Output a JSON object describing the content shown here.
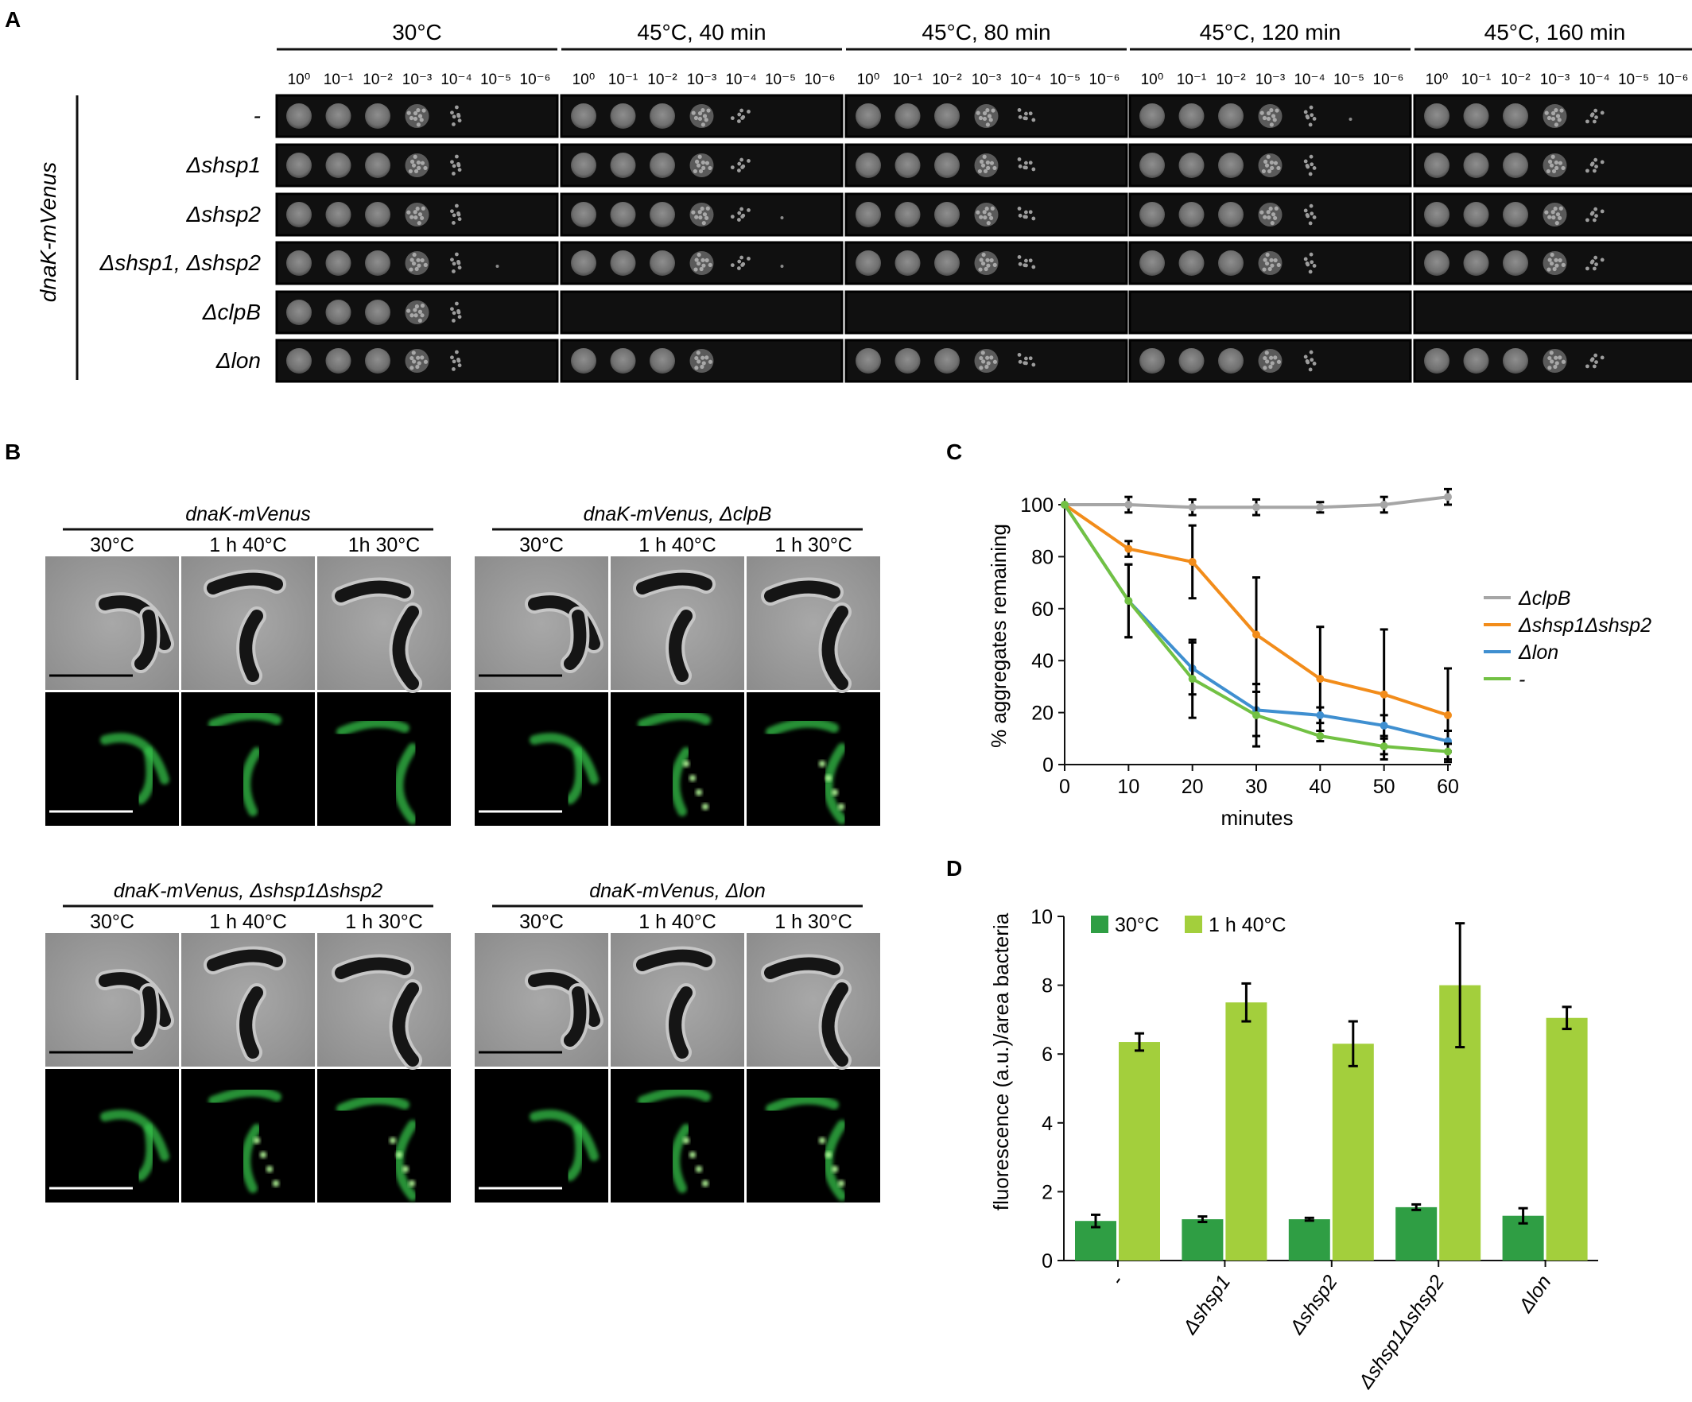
{
  "panel_letters": [
    "A",
    "B",
    "C",
    "D"
  ],
  "panelA": {
    "row_group_label": "dnaK-mVenus",
    "conditions": [
      "30°C",
      "45°C, 40 min",
      "45°C, 80 min",
      "45°C, 120 min",
      "45°C, 160 min"
    ],
    "dilutions": [
      "10⁰",
      "10⁻¹",
      "10⁻²",
      "10⁻³",
      "10⁻⁴",
      "10⁻⁵",
      "10⁻⁶"
    ],
    "strains": [
      "-",
      "Δshsp1",
      "Δshsp2",
      "Δshsp1, Δshsp2",
      "ΔclpB",
      "Δlon"
    ],
    "growth_spots_visible": [
      [
        5,
        5,
        5,
        6,
        5
      ],
      [
        5,
        5,
        5,
        5,
        5
      ],
      [
        5,
        6,
        5,
        5,
        5
      ],
      [
        6,
        6,
        5,
        5,
        5
      ],
      [
        5,
        0,
        0,
        0,
        0
      ],
      [
        5,
        4,
        5,
        5,
        5
      ]
    ]
  },
  "panelB": {
    "groups": [
      {
        "title": "dnaK-mVenus",
        "columns": [
          "30°C",
          "1 h 40°C",
          "1h 30°C"
        ]
      },
      {
        "title": "dnaK-mVenus, ΔclpB",
        "columns": [
          "30°C",
          "1 h 40°C",
          "1 h 30°C"
        ]
      },
      {
        "title": "dnaK-mVenus, Δshsp1Δshsp2",
        "columns": [
          "30°C",
          "1 h 40°C",
          "1 h 30°C"
        ]
      },
      {
        "title": "dnaK-mVenus, Δlon",
        "columns": [
          "30°C",
          "1 h 40°C",
          "1 h 30°C"
        ]
      }
    ]
  },
  "colors": {
    "clpB": "#a6a6a6",
    "shsp": "#f28c1a",
    "lon": "#3f8fd0",
    "wt": "#72c143",
    "bar_30": "#2f9e44",
    "bar_40": "#a3cf3c",
    "gfp": "#36c24a",
    "plate": "#101010",
    "phase_bg": "#9a9a9a"
  },
  "chart_data": [
    {
      "type": "line",
      "panel": "C",
      "ylabel": "% aggregates remaining",
      "xlabel": "minutes",
      "x": [
        0,
        10,
        20,
        30,
        40,
        50,
        60
      ],
      "xlim": [
        0,
        60
      ],
      "ylim": [
        0,
        100
      ],
      "yticks": [
        0,
        20,
        40,
        60,
        80,
        100
      ],
      "legend_position": "right",
      "series": [
        {
          "name": "ΔclpB",
          "color": "#a6a6a6",
          "values": [
            100,
            100,
            99,
            99,
            99,
            100,
            103
          ],
          "errors": [
            0,
            3,
            3,
            3,
            2,
            3,
            3
          ]
        },
        {
          "name": "Δshsp1Δshsp2",
          "color": "#f28c1a",
          "values": [
            100,
            83,
            78,
            50,
            33,
            27,
            19
          ],
          "errors": [
            0,
            3,
            14,
            22,
            20,
            25,
            18
          ]
        },
        {
          "name": "Δlon",
          "color": "#3f8fd0",
          "values": [
            100,
            63,
            37,
            21,
            19,
            15,
            9
          ],
          "errors": [
            0,
            14,
            10,
            10,
            3,
            4,
            4
          ]
        },
        {
          "name": "-",
          "color": "#72c143",
          "values": [
            100,
            63,
            33,
            19,
            11,
            7,
            5
          ],
          "errors": [
            0,
            14,
            15,
            12,
            2,
            3,
            3
          ]
        }
      ]
    },
    {
      "type": "bar",
      "panel": "D",
      "ylabel": "fluorescence (a.u.)/area bacteria",
      "categories": [
        "-",
        "Δshsp1",
        "Δshsp2",
        "Δshsp1Δshsp2",
        "Δlon"
      ],
      "ylim": [
        0,
        10
      ],
      "yticks": [
        0,
        2,
        4,
        6,
        8,
        10
      ],
      "legend_position": "top-left",
      "series": [
        {
          "name": "30°C",
          "color": "#2f9e44",
          "values": [
            1.15,
            1.2,
            1.2,
            1.55,
            1.3
          ],
          "errors": [
            0.18,
            0.08,
            0.04,
            0.08,
            0.22
          ]
        },
        {
          "name": "1 h 40°C",
          "color": "#a3cf3c",
          "values": [
            6.35,
            7.5,
            6.3,
            8.0,
            7.05
          ],
          "errors": [
            0.25,
            0.55,
            0.65,
            1.8,
            0.32
          ]
        }
      ]
    }
  ]
}
